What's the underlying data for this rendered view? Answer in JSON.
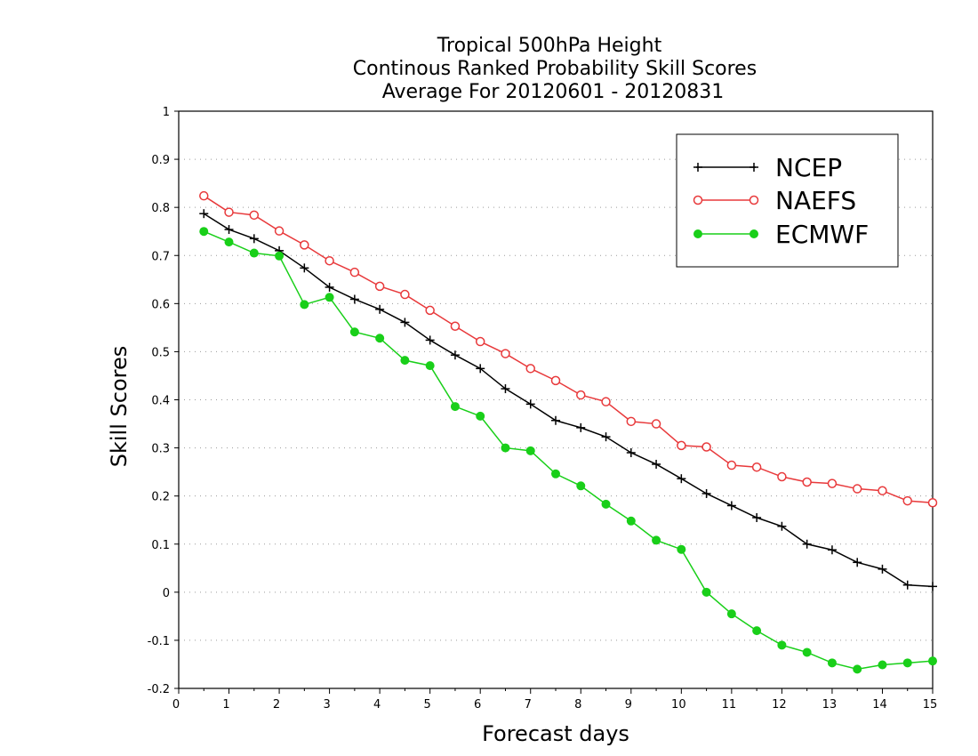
{
  "chart_data": {
    "type": "line",
    "title": [
      "Tropical 500hPa Height",
      "Continous Ranked Probability Skill Scores",
      "Average For 20120601 - 20120831"
    ],
    "xlabel": "Forecast days",
    "ylabel": "Skill Scores",
    "xlim": [
      0,
      15
    ],
    "ylim": [
      -0.2,
      1
    ],
    "xticks": [
      0,
      1,
      2,
      3,
      4,
      5,
      6,
      7,
      8,
      9,
      10,
      11,
      12,
      13,
      14,
      15
    ],
    "yticks": [
      -0.2,
      -0.1,
      0,
      0.1,
      0.2,
      0.3,
      0.4,
      0.5,
      0.6,
      0.7,
      0.8,
      0.9,
      1
    ],
    "ytick_labels": [
      "-0.2",
      "-0.1",
      "0",
      "0.1",
      "0.2",
      "0.3",
      "0.4",
      "0.5",
      "0.6",
      "0.7",
      "0.8",
      "0.9",
      "1"
    ],
    "grid": "horizontal dotted",
    "legend_position": "top-right",
    "x": [
      0.5,
      1,
      1.5,
      2,
      2.5,
      3,
      3.5,
      4,
      4.5,
      5,
      5.5,
      6,
      6.5,
      7,
      7.5,
      8,
      8.5,
      9,
      9.5,
      10,
      10.5,
      11,
      11.5,
      12,
      12.5,
      13,
      13.5,
      14,
      14.5,
      15
    ],
    "series": [
      {
        "name": "NCEP",
        "color": "#000000",
        "marker": "plus",
        "values": [
          0.787,
          0.754,
          0.735,
          0.71,
          0.674,
          0.634,
          0.609,
          0.588,
          0.561,
          0.524,
          0.493,
          0.465,
          0.423,
          0.391,
          0.357,
          0.342,
          0.323,
          0.29,
          0.266,
          0.236,
          0.205,
          0.18,
          0.155,
          0.137,
          0.1,
          0.088,
          0.062,
          0.048,
          0.015,
          0.012
        ]
      },
      {
        "name": "NAEFS",
        "color": "#e8393b",
        "marker": "open-circle",
        "values": [
          0.824,
          0.79,
          0.784,
          0.751,
          0.722,
          0.689,
          0.665,
          0.636,
          0.619,
          0.586,
          0.553,
          0.521,
          0.496,
          0.465,
          0.44,
          0.41,
          0.396,
          0.355,
          0.35,
          0.305,
          0.302,
          0.264,
          0.26,
          0.24,
          0.229,
          0.226,
          0.215,
          0.211,
          0.19,
          0.186
        ]
      },
      {
        "name": "ECMWF",
        "color": "#19cf19",
        "marker": "filled-circle",
        "values": [
          0.75,
          0.728,
          0.705,
          0.699,
          0.598,
          0.613,
          0.541,
          0.528,
          0.482,
          0.471,
          0.386,
          0.366,
          0.3,
          0.294,
          0.246,
          0.221,
          0.183,
          0.148,
          0.108,
          0.089,
          0.0,
          -0.045,
          -0.08,
          -0.11,
          -0.125,
          -0.147,
          -0.16,
          -0.151,
          -0.147,
          -0.143
        ]
      }
    ]
  }
}
